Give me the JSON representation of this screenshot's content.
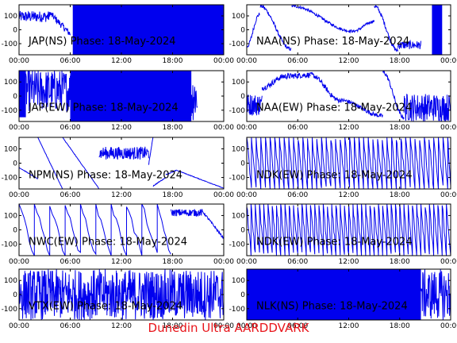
{
  "footer_text": "Dunedin Ultra AARDDVARK",
  "colors": {
    "trace": "#0000ee",
    "axis": "#000000",
    "footer": "#e8141a"
  },
  "chart_data": [
    {
      "type": "line",
      "label": "JAP(NS) Phase: 18-May-2024",
      "x_ticks": [
        "00:00",
        "06:00",
        "12:00",
        "18:00",
        "00:00"
      ],
      "y_ticks": [
        100,
        0,
        -100
      ],
      "ylim": [
        -180,
        180
      ],
      "xlim_hours": [
        0,
        24
      ],
      "series": [
        {
          "name": "JAP(NS)",
          "segments": [
            {
              "kind": "noise",
              "x0": 0,
              "x1": 3.6,
              "center": 95,
              "amp": 40
            },
            {
              "kind": "ramp",
              "x0": 3.6,
              "x1": 6.0,
              "y0": 120,
              "y1": -30,
              "amp": 25
            },
            {
              "kind": "block",
              "x0": 6.3,
              "x1": 24,
              "lo": -180,
              "hi": 180
            }
          ]
        }
      ]
    },
    {
      "type": "line",
      "label": "NAA(NS) Phase: 18-May-2024",
      "x_ticks": [
        "00:00",
        "06:00",
        "12:00",
        "18:00",
        "00:00"
      ],
      "y_ticks": [
        100,
        0,
        -100
      ],
      "ylim": [
        -180,
        180
      ],
      "xlim_hours": [
        0,
        24
      ],
      "series": [
        {
          "name": "NAA(NS)",
          "segments": [
            {
              "kind": "curve",
              "x0": 0,
              "x1": 1.5,
              "y0": -120,
              "y1": 110,
              "amp": 15
            },
            {
              "kind": "curve",
              "x0": 1.6,
              "x1": 5.2,
              "y0": 170,
              "y1": -140,
              "amp": 12
            },
            {
              "kind": "curve",
              "x0": 5.3,
              "x1": 12.5,
              "y0": 170,
              "y1": -10,
              "amp": 10
            },
            {
              "kind": "curve",
              "x0": 12.5,
              "x1": 15,
              "y0": -10,
              "y1": 60,
              "amp": 10
            },
            {
              "kind": "curve",
              "x0": 15,
              "x1": 17.8,
              "y0": 170,
              "y1": -150,
              "amp": 15
            },
            {
              "kind": "noise",
              "x0": 17.8,
              "x1": 20.5,
              "center": -110,
              "amp": 30
            },
            {
              "kind": "block",
              "x0": 21.8,
              "x1": 23,
              "lo": -180,
              "hi": 180
            }
          ]
        }
      ]
    },
    {
      "type": "line",
      "label": "JAP(EW) Phase: 18-May-2024",
      "x_ticks": [
        "00:00",
        "06:00",
        "12:00",
        "18:00",
        "00:00"
      ],
      "y_ticks": [
        100,
        0,
        -100
      ],
      "ylim": [
        -180,
        180
      ],
      "xlim_hours": [
        0,
        24
      ],
      "series": [
        {
          "name": "JAP(EW)",
          "segments": [
            {
              "kind": "block",
              "x0": 0,
              "x1": 0.8,
              "lo": -150,
              "hi": 180
            },
            {
              "kind": "noise",
              "x0": 0.8,
              "x1": 6.0,
              "center": 40,
              "amp": 150
            },
            {
              "kind": "block",
              "x0": 6.0,
              "x1": 20.2,
              "lo": -180,
              "hi": 180
            },
            {
              "kind": "noise",
              "x0": 20.2,
              "x1": 20.9,
              "center": 0,
              "amp": 180
            }
          ]
        }
      ]
    },
    {
      "type": "line",
      "label": "NAA(EW) Phase: 18-May-2024",
      "x_ticks": [
        "00:00",
        "06:00",
        "12:00",
        "18:00",
        "00:00"
      ],
      "y_ticks": [
        100,
        0,
        -100
      ],
      "ylim": [
        -180,
        180
      ],
      "xlim_hours": [
        0,
        24
      ],
      "series": [
        {
          "name": "NAA(EW)",
          "segments": [
            {
              "kind": "noise",
              "x0": 0,
              "x1": 1.8,
              "center": -60,
              "amp": 80
            },
            {
              "kind": "curve",
              "x0": 1.8,
              "x1": 4.5,
              "y0": 60,
              "y1": 140,
              "amp": 20
            },
            {
              "kind": "curve",
              "x0": 4.5,
              "x1": 7.5,
              "y0": 140,
              "y1": 150,
              "amp": 20
            },
            {
              "kind": "curve",
              "x0": 7.5,
              "x1": 11,
              "y0": 150,
              "y1": -30,
              "amp": 18
            },
            {
              "kind": "curve",
              "x0": 11,
              "x1": 16,
              "y0": -30,
              "y1": -140,
              "amp": 15
            },
            {
              "kind": "curve",
              "x0": 16,
              "x1": 18.5,
              "y0": 170,
              "y1": -150,
              "amp": 15
            },
            {
              "kind": "noise",
              "x0": 18.5,
              "x1": 24,
              "center": -80,
              "amp": 100
            }
          ]
        }
      ]
    },
    {
      "type": "line",
      "label": "NPM(NS) Phase: 18-May-2024",
      "x_ticks": [
        "00:00",
        "06:00",
        "12:00",
        "18:00",
        "00:00"
      ],
      "y_ticks": [
        100,
        0,
        -100
      ],
      "ylim": [
        -180,
        180
      ],
      "xlim_hours": [
        0,
        24
      ],
      "series": [
        {
          "name": "NPM(NS)",
          "segments": [
            {
              "kind": "ramp",
              "x0": 0,
              "x1": 2.2,
              "y0": -30,
              "y1": -110,
              "amp": 2
            },
            {
              "kind": "ramp",
              "x0": 2.2,
              "x1": 5.1,
              "y0": 180,
              "y1": -180,
              "amp": 2
            },
            {
              "kind": "ramp",
              "x0": 5.1,
              "x1": 9.4,
              "y0": 180,
              "y1": -180,
              "amp": 2
            },
            {
              "kind": "noise",
              "x0": 9.4,
              "x1": 15.2,
              "center": 70,
              "amp": 45
            },
            {
              "kind": "ramp",
              "x0": 15.2,
              "x1": 15.7,
              "y0": -10,
              "y1": 180,
              "amp": 3
            },
            {
              "kind": "ramp",
              "x0": 15.7,
              "x1": 17.2,
              "y0": -160,
              "y1": -100,
              "amp": 3
            },
            {
              "kind": "ramp",
              "x0": 17.2,
              "x1": 18.5,
              "y0": -80,
              "y1": -50,
              "amp": 3
            },
            {
              "kind": "ramp",
              "x0": 18.5,
              "x1": 24,
              "y0": -50,
              "y1": -175,
              "amp": 2
            }
          ]
        }
      ]
    },
    {
      "type": "line",
      "label": "NDK(EW) Phase: 18-May-2024",
      "x_ticks": [
        "00:00",
        "06:00",
        "12:00",
        "18:00",
        "00:00"
      ],
      "y_ticks": [
        100,
        0,
        -100
      ],
      "ylim": [
        -180,
        180
      ],
      "xlim_hours": [
        0,
        24
      ],
      "series": [
        {
          "name": "NDK(EW)",
          "segments": [
            {
              "kind": "saw",
              "x0": 0,
              "x1": 24,
              "period": 0.55,
              "dir": -1
            }
          ]
        }
      ]
    },
    {
      "type": "line",
      "label": "NWC(EW) Phase: 18-May-2024",
      "x_ticks": [
        "00:00",
        "06:00",
        "12:00",
        "18:00",
        "00:00"
      ],
      "y_ticks": [
        100,
        0,
        -100
      ],
      "ylim": [
        -180,
        180
      ],
      "xlim_hours": [
        0,
        24
      ],
      "series": [
        {
          "name": "NWC(EW)",
          "segments": [
            {
              "kind": "saw",
              "x0": 0,
              "x1": 17.8,
              "period": 1.8,
              "dir": -1
            },
            {
              "kind": "noise",
              "x0": 17.8,
              "x1": 21.5,
              "center": 120,
              "amp": 25
            },
            {
              "kind": "ramp",
              "x0": 21.5,
              "x1": 24,
              "y0": 130,
              "y1": -60,
              "amp": 8
            }
          ]
        }
      ]
    },
    {
      "type": "line",
      "label": "NDK(EW) Phase: 18-May-2024",
      "x_ticks": [
        "00:00",
        "06:00",
        "12:00",
        "18:00",
        "00:00"
      ],
      "y_ticks": [
        100,
        0,
        -100
      ],
      "ylim": [
        -180,
        180
      ],
      "xlim_hours": [
        0,
        24
      ],
      "series": [
        {
          "name": "NDK(EW)",
          "segments": [
            {
              "kind": "saw",
              "x0": 0,
              "x1": 24,
              "period": 0.5,
              "dir": -1
            }
          ]
        }
      ]
    },
    {
      "type": "line",
      "label": "VTX(EW) Phase: 18-May-2024",
      "x_ticks": [
        "00:00",
        "06:00",
        "12:00",
        "18:00",
        "00:00"
      ],
      "y_ticks": [
        100,
        0,
        -100
      ],
      "ylim": [
        -180,
        180
      ],
      "xlim_hours": [
        0,
        24
      ],
      "series": [
        {
          "name": "VTX(EW)",
          "segments": [
            {
              "kind": "noise",
              "x0": 0,
              "x1": 24,
              "center": 0,
              "amp": 180
            }
          ]
        }
      ]
    },
    {
      "type": "line",
      "label": "NLK(NS) Phase: 18-May-2024",
      "x_ticks": [
        "00:00",
        "06:00",
        "12:00",
        "18:00",
        "00:00"
      ],
      "y_ticks": [
        100,
        0,
        -100
      ],
      "ylim": [
        -180,
        180
      ],
      "xlim_hours": [
        0,
        24
      ],
      "series": [
        {
          "name": "NLK(NS)",
          "segments": [
            {
              "kind": "block",
              "x0": 0,
              "x1": 20.5,
              "lo": -180,
              "hi": 180
            },
            {
              "kind": "noise",
              "x0": 20.5,
              "x1": 24,
              "center": 0,
              "amp": 180
            }
          ]
        }
      ]
    }
  ]
}
